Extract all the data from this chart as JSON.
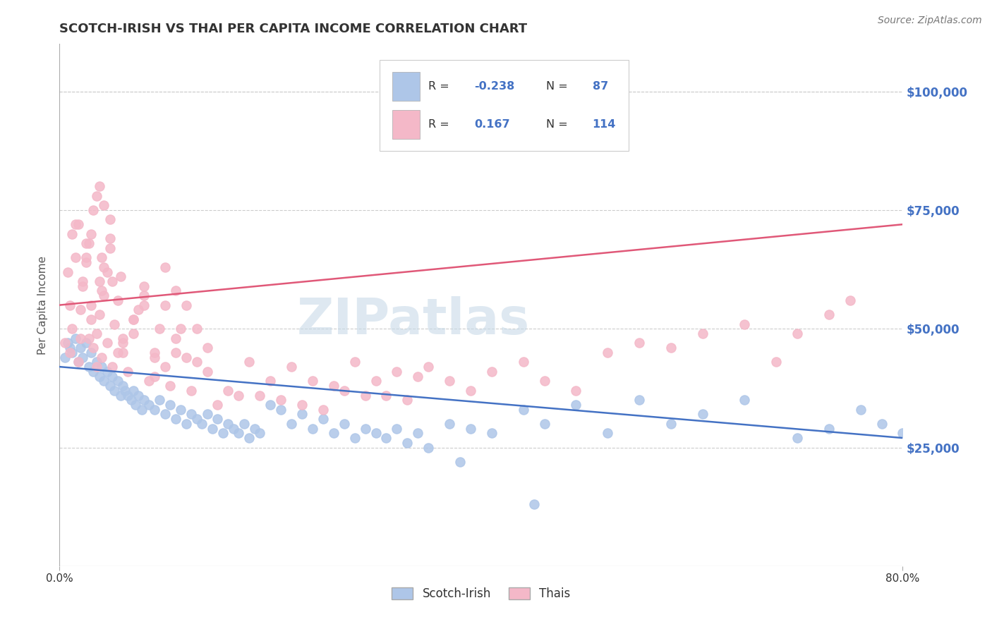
{
  "title": "SCOTCH-IRISH VS THAI PER CAPITA INCOME CORRELATION CHART",
  "source_text": "Source: ZipAtlas.com",
  "ylabel": "Per Capita Income",
  "xlim": [
    0.0,
    0.8
  ],
  "ylim": [
    0,
    110000
  ],
  "scotch_irish": {
    "color": "#aec6e8",
    "line_color": "#4472c4",
    "R": -0.238,
    "N": 87,
    "x": [
      0.005,
      0.008,
      0.01,
      0.012,
      0.015,
      0.018,
      0.02,
      0.022,
      0.025,
      0.028,
      0.03,
      0.032,
      0.035,
      0.038,
      0.04,
      0.042,
      0.045,
      0.048,
      0.05,
      0.052,
      0.055,
      0.058,
      0.06,
      0.062,
      0.065,
      0.068,
      0.07,
      0.072,
      0.075,
      0.078,
      0.08,
      0.085,
      0.09,
      0.095,
      0.1,
      0.105,
      0.11,
      0.115,
      0.12,
      0.125,
      0.13,
      0.135,
      0.14,
      0.145,
      0.15,
      0.155,
      0.16,
      0.165,
      0.17,
      0.175,
      0.18,
      0.185,
      0.19,
      0.2,
      0.21,
      0.22,
      0.23,
      0.24,
      0.25,
      0.26,
      0.27,
      0.28,
      0.29,
      0.3,
      0.31,
      0.32,
      0.33,
      0.34,
      0.35,
      0.37,
      0.39,
      0.41,
      0.44,
      0.46,
      0.49,
      0.52,
      0.55,
      0.58,
      0.61,
      0.65,
      0.7,
      0.73,
      0.76,
      0.78,
      0.8,
      0.45,
      0.38
    ],
    "y": [
      44000,
      47000,
      46000,
      45000,
      48000,
      43000,
      46000,
      44000,
      47000,
      42000,
      45000,
      41000,
      43000,
      40000,
      42000,
      39000,
      41000,
      38000,
      40000,
      37000,
      39000,
      36000,
      38000,
      37000,
      36000,
      35000,
      37000,
      34000,
      36000,
      33000,
      35000,
      34000,
      33000,
      35000,
      32000,
      34000,
      31000,
      33000,
      30000,
      32000,
      31000,
      30000,
      32000,
      29000,
      31000,
      28000,
      30000,
      29000,
      28000,
      30000,
      27000,
      29000,
      28000,
      34000,
      33000,
      30000,
      32000,
      29000,
      31000,
      28000,
      30000,
      27000,
      29000,
      28000,
      27000,
      29000,
      26000,
      28000,
      25000,
      30000,
      29000,
      28000,
      33000,
      30000,
      34000,
      28000,
      35000,
      30000,
      32000,
      35000,
      27000,
      29000,
      33000,
      30000,
      28000,
      13000,
      22000
    ]
  },
  "thais": {
    "color": "#f4b8c8",
    "line_color": "#e05878",
    "R": 0.167,
    "N": 114,
    "x": [
      0.005,
      0.008,
      0.01,
      0.012,
      0.015,
      0.018,
      0.02,
      0.022,
      0.025,
      0.028,
      0.03,
      0.032,
      0.035,
      0.038,
      0.04,
      0.042,
      0.045,
      0.048,
      0.01,
      0.012,
      0.015,
      0.018,
      0.02,
      0.022,
      0.025,
      0.028,
      0.03,
      0.032,
      0.035,
      0.038,
      0.04,
      0.042,
      0.045,
      0.048,
      0.05,
      0.052,
      0.055,
      0.058,
      0.06,
      0.065,
      0.07,
      0.075,
      0.08,
      0.085,
      0.09,
      0.095,
      0.1,
      0.105,
      0.11,
      0.115,
      0.12,
      0.125,
      0.13,
      0.14,
      0.15,
      0.16,
      0.17,
      0.18,
      0.19,
      0.2,
      0.21,
      0.22,
      0.23,
      0.24,
      0.25,
      0.26,
      0.27,
      0.28,
      0.29,
      0.3,
      0.31,
      0.32,
      0.33,
      0.34,
      0.35,
      0.37,
      0.39,
      0.41,
      0.44,
      0.46,
      0.49,
      0.52,
      0.55,
      0.58,
      0.61,
      0.65,
      0.68,
      0.7,
      0.73,
      0.75,
      0.035,
      0.038,
      0.042,
      0.048,
      0.055,
      0.06,
      0.07,
      0.08,
      0.09,
      0.1,
      0.11,
      0.12,
      0.13,
      0.14,
      0.025,
      0.03,
      0.04,
      0.05,
      0.06,
      0.07,
      0.08,
      0.09,
      0.1,
      0.11
    ],
    "y": [
      47000,
      62000,
      55000,
      70000,
      65000,
      72000,
      48000,
      60000,
      64000,
      68000,
      52000,
      75000,
      49000,
      60000,
      44000,
      57000,
      62000,
      67000,
      45000,
      50000,
      72000,
      43000,
      54000,
      59000,
      65000,
      48000,
      70000,
      46000,
      42000,
      53000,
      58000,
      63000,
      47000,
      69000,
      42000,
      51000,
      56000,
      61000,
      45000,
      41000,
      49000,
      54000,
      59000,
      39000,
      45000,
      50000,
      55000,
      38000,
      45000,
      50000,
      55000,
      37000,
      43000,
      41000,
      34000,
      37000,
      36000,
      43000,
      36000,
      39000,
      35000,
      42000,
      34000,
      39000,
      33000,
      38000,
      37000,
      43000,
      36000,
      39000,
      36000,
      41000,
      35000,
      40000,
      42000,
      39000,
      37000,
      41000,
      43000,
      39000,
      37000,
      45000,
      47000,
      46000,
      49000,
      51000,
      43000,
      49000,
      53000,
      56000,
      78000,
      80000,
      76000,
      73000,
      45000,
      48000,
      52000,
      55000,
      40000,
      42000,
      58000,
      44000,
      50000,
      46000,
      68000,
      55000,
      65000,
      60000,
      47000,
      52000,
      57000,
      44000,
      63000,
      48000
    ]
  },
  "title_color": "#333333",
  "title_fontsize": 13,
  "axis_label_color": "#555555",
  "tick_color_right": "#4472c4",
  "grid_color": "#cccccc",
  "watermark_text": "ZIPatlas",
  "watermark_color": "#c8dae8",
  "source_color": "#777777",
  "legend_box_color": "#4472c4",
  "legend_text_color": "#333333"
}
